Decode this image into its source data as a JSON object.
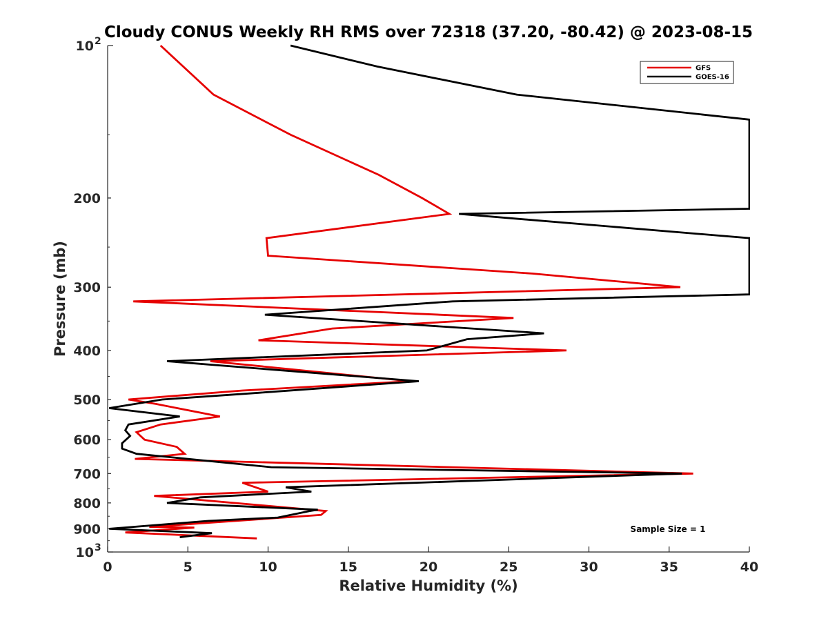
{
  "chart_data": {
    "type": "line",
    "title": "Cloudy CONUS Weekly RH RMS over 72318 (37.20, -80.42) @ 2023-08-15",
    "xlabel": "Relative Humidity (%)",
    "ylabel": "Pressure (mb)",
    "xlim": [
      0,
      40
    ],
    "ylim": [
      1000,
      100
    ],
    "yscale": "log",
    "grid": false,
    "legend_position": "top-right",
    "x_ticks": [
      "0",
      "5",
      "10",
      "15",
      "20",
      "25",
      "30",
      "35",
      "40"
    ],
    "y_ticks": [
      {
        "value": 100,
        "base": "10",
        "exp": "2"
      },
      {
        "value": 200,
        "label": "200"
      },
      {
        "value": 300,
        "label": "300"
      },
      {
        "value": 400,
        "label": "400"
      },
      {
        "value": 500,
        "label": "500"
      },
      {
        "value": 600,
        "label": "600"
      },
      {
        "value": 700,
        "label": "700"
      },
      {
        "value": 800,
        "label": "800"
      },
      {
        "value": 900,
        "label": "900"
      },
      {
        "value": 1000,
        "base": "10",
        "exp": "3"
      }
    ],
    "annotation": "Sample Size = 1",
    "series": [
      {
        "name": "GFS",
        "color": "#e60000",
        "points": [
          [
            3.3,
            100
          ],
          [
            6.6,
            125
          ],
          [
            11.4,
            150
          ],
          [
            16.9,
            180
          ],
          [
            19.6,
            200
          ],
          [
            21.3,
            215
          ],
          [
            9.9,
            240
          ],
          [
            10.0,
            260
          ],
          [
            26.5,
            282
          ],
          [
            35.7,
            300
          ],
          [
            1.6,
            320
          ],
          [
            25.3,
            345
          ],
          [
            14.0,
            362
          ],
          [
            9.4,
            382
          ],
          [
            28.6,
            400
          ],
          [
            6.4,
            420
          ],
          [
            18.9,
            460
          ],
          [
            8.4,
            480
          ],
          [
            1.3,
            500
          ],
          [
            3.0,
            510
          ],
          [
            7.0,
            540
          ],
          [
            3.3,
            560
          ],
          [
            1.8,
            580
          ],
          [
            2.3,
            600
          ],
          [
            4.3,
            620
          ],
          [
            4.8,
            640
          ],
          [
            1.7,
            655
          ],
          [
            36.5,
            700
          ],
          [
            8.4,
            730
          ],
          [
            10.0,
            760
          ],
          [
            2.9,
            775
          ],
          [
            13.6,
            830
          ],
          [
            13.3,
            845
          ],
          [
            2.6,
            892
          ],
          [
            5.4,
            895
          ],
          [
            1.1,
            915
          ],
          [
            9.3,
            940
          ]
        ]
      },
      {
        "name": "GOES-16",
        "color": "#000000",
        "points": [
          [
            11.4,
            100
          ],
          [
            16.8,
            110
          ],
          [
            25.5,
            125
          ],
          [
            40.0,
            140
          ],
          [
            40.0,
            210
          ],
          [
            21.9,
            215
          ],
          [
            40.0,
            240
          ],
          [
            40.0,
            310
          ],
          [
            21.5,
            320
          ],
          [
            9.8,
            340
          ],
          [
            27.2,
            370
          ],
          [
            22.4,
            380
          ],
          [
            19.9,
            400
          ],
          [
            3.7,
            420
          ],
          [
            19.4,
            460
          ],
          [
            9.4,
            485
          ],
          [
            3.4,
            500
          ],
          [
            0.1,
            520
          ],
          [
            4.5,
            540
          ],
          [
            1.3,
            560
          ],
          [
            1.1,
            575
          ],
          [
            1.4,
            590
          ],
          [
            0.9,
            610
          ],
          [
            0.9,
            625
          ],
          [
            1.8,
            640
          ],
          [
            10.2,
            680
          ],
          [
            35.8,
            700
          ],
          [
            11.1,
            745
          ],
          [
            12.7,
            760
          ],
          [
            5.8,
            780
          ],
          [
            3.7,
            800
          ],
          [
            13.1,
            825
          ],
          [
            12.6,
            830
          ],
          [
            10.6,
            855
          ],
          [
            6.3,
            868
          ],
          [
            0.1,
            900
          ],
          [
            6.5,
            918
          ],
          [
            4.5,
            935
          ]
        ]
      }
    ]
  }
}
